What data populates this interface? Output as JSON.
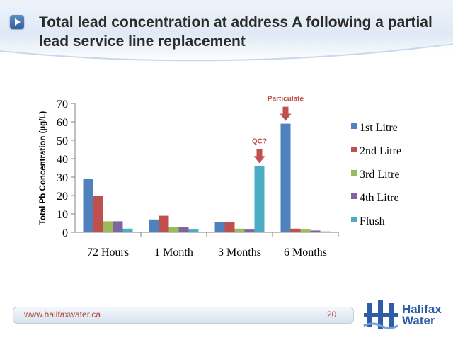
{
  "slide": {
    "title": "Total lead concentration at address A following a partial lead service line replacement",
    "footer_url": "www.halifaxwater.ca",
    "page_number": "20",
    "logo_line1": "Halifax",
    "logo_line2": "Water"
  },
  "colors": {
    "series": [
      "#4f81bd",
      "#c0504d",
      "#9bbb59",
      "#8064a2",
      "#4bacc6"
    ],
    "arrow": "#c0504d",
    "annotation": "#c0504d",
    "accent": "#2d5da6"
  },
  "icons": [
    "play-bullet-icon",
    "halifax-water-logo-icon"
  ],
  "chart_data": {
    "type": "bar",
    "title": "",
    "xlabel": "",
    "ylabel": "Total Pb Concentration (µg/L)",
    "ylim": [
      0,
      70
    ],
    "yticks": [
      0,
      10,
      20,
      30,
      40,
      50,
      60,
      70
    ],
    "grid": false,
    "legend_position": "right",
    "categories": [
      "72 Hours",
      "1 Month",
      "3 Months",
      "6 Months"
    ],
    "series": [
      {
        "name": "1st Litre",
        "values": [
          29,
          7,
          5.5,
          59
        ]
      },
      {
        "name": "2nd Litre",
        "values": [
          20,
          9,
          5.5,
          2
        ]
      },
      {
        "name": "3rd Litre",
        "values": [
          6,
          3,
          2,
          1.5
        ]
      },
      {
        "name": "4th Litre",
        "values": [
          6,
          3,
          1.5,
          1
        ]
      },
      {
        "name": "Flush",
        "values": [
          2,
          1.5,
          36,
          0.5
        ]
      }
    ],
    "annotations": [
      {
        "text": "QC?",
        "category": "3 Months",
        "series": "Flush"
      },
      {
        "text": "Particulate",
        "category": "6 Months",
        "series": "1st Litre"
      }
    ]
  }
}
